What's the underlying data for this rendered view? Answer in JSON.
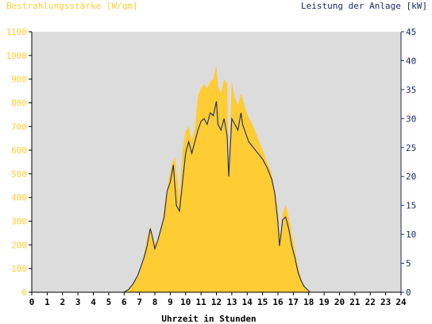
{
  "chart_data": {
    "type": "area",
    "left_axis_title": "Bestrahlungsstärke [W/qm]",
    "right_axis_title": "Leistung der Anlage [kW]",
    "xlabel": "Uhrzeit in Stunden",
    "x_ticks": [
      "0",
      "1",
      "2",
      "3",
      "4",
      "5",
      "6",
      "7",
      "8",
      "9",
      "10",
      "11",
      "12",
      "13",
      "14",
      "15",
      "16",
      "17",
      "18",
      "19",
      "20",
      "21",
      "22",
      "23",
      "24"
    ],
    "left_ticks": [
      "0",
      "100",
      "200",
      "300",
      "400",
      "500",
      "600",
      "700",
      "800",
      "900",
      "1000",
      "1100"
    ],
    "right_ticks": [
      "0",
      "5",
      "10",
      "15",
      "20",
      "25",
      "30",
      "35",
      "40",
      "45"
    ],
    "xlim": [
      0,
      24
    ],
    "ylim_left": [
      0,
      1100
    ],
    "ylim_right": [
      0,
      45
    ],
    "colors": {
      "irradiance": "#ffcc33",
      "power": "#1a2a6c",
      "plot_background": "#dcdcdc",
      "left_axis_text": "#ffcc33",
      "right_axis_text": "#1a2a6c",
      "x_axis_text": "#000000"
    },
    "series": [
      {
        "name": "Bestrahlungsstärke",
        "axis": "left",
        "x": [
          0,
          5.5,
          6,
          6.3,
          6.6,
          6.9,
          7.1,
          7.3,
          7.5,
          7.7,
          7.9,
          8.1,
          8.3,
          8.5,
          8.7,
          8.9,
          9.1,
          9.3,
          9.5,
          9.6,
          9.8,
          10,
          10.2,
          10.4,
          10.6,
          10.8,
          11,
          11.2,
          11.4,
          11.6,
          11.8,
          12,
          12.1,
          12.3,
          12.5,
          12.7,
          12.8,
          13,
          13.2,
          13.4,
          13.6,
          13.7,
          13.9,
          14.1,
          14.4,
          14.7,
          15,
          15.3,
          15.6,
          15.8,
          16,
          16.1,
          16.2,
          16.3,
          16.5,
          16.7,
          16.9,
          17.1,
          17.3,
          17.5,
          17.7,
          17.9,
          18.1,
          18.3,
          18.6,
          19,
          24
        ],
        "y": [
          0,
          0,
          0,
          15,
          40,
          70,
          110,
          160,
          230,
          280,
          230,
          200,
          250,
          300,
          400,
          480,
          540,
          570,
          460,
          400,
          600,
          680,
          700,
          640,
          690,
          830,
          860,
          880,
          860,
          890,
          900,
          960,
          870,
          840,
          900,
          880,
          520,
          890,
          820,
          790,
          840,
          820,
          770,
          740,
          700,
          650,
          600,
          550,
          500,
          430,
          350,
          250,
          250,
          330,
          370,
          320,
          250,
          180,
          110,
          60,
          25,
          8,
          0,
          0,
          0,
          0,
          0
        ]
      },
      {
        "name": "Leistung der Anlage",
        "axis": "right",
        "x": [
          0,
          5.5,
          6,
          6.3,
          6.6,
          6.9,
          7.1,
          7.3,
          7.5,
          7.7,
          7.8,
          8,
          8.2,
          8.4,
          8.6,
          8.8,
          9,
          9.2,
          9.4,
          9.6,
          9.8,
          10,
          10.2,
          10.4,
          10.6,
          10.8,
          11,
          11.2,
          11.4,
          11.6,
          11.8,
          12,
          12.1,
          12.3,
          12.5,
          12.7,
          12.8,
          13,
          13.2,
          13.4,
          13.6,
          13.7,
          13.9,
          14.1,
          14.4,
          14.7,
          15,
          15.3,
          15.6,
          15.8,
          16,
          16.1,
          16.2,
          16.3,
          16.5,
          16.7,
          16.9,
          17.1,
          17.3,
          17.5,
          17.7,
          17.9,
          18.1,
          18.3,
          18.6,
          19,
          24
        ],
        "y": [
          0,
          0,
          0,
          0.5,
          1.5,
          3,
          4.5,
          6,
          8,
          11,
          10,
          7.5,
          9,
          11,
          13,
          17.5,
          19,
          22,
          15,
          14,
          19,
          24,
          26,
          24,
          26,
          28,
          29.5,
          30,
          29,
          31,
          30.5,
          33,
          29,
          28,
          30,
          27,
          20,
          30,
          29,
          28,
          31,
          29,
          27.5,
          26,
          25,
          24,
          23,
          21.5,
          19.5,
          17,
          12,
          8,
          10,
          12.5,
          13,
          11,
          8,
          6,
          3.5,
          2,
          1,
          0.5,
          0,
          0,
          0,
          0,
          0
        ]
      }
    ]
  }
}
